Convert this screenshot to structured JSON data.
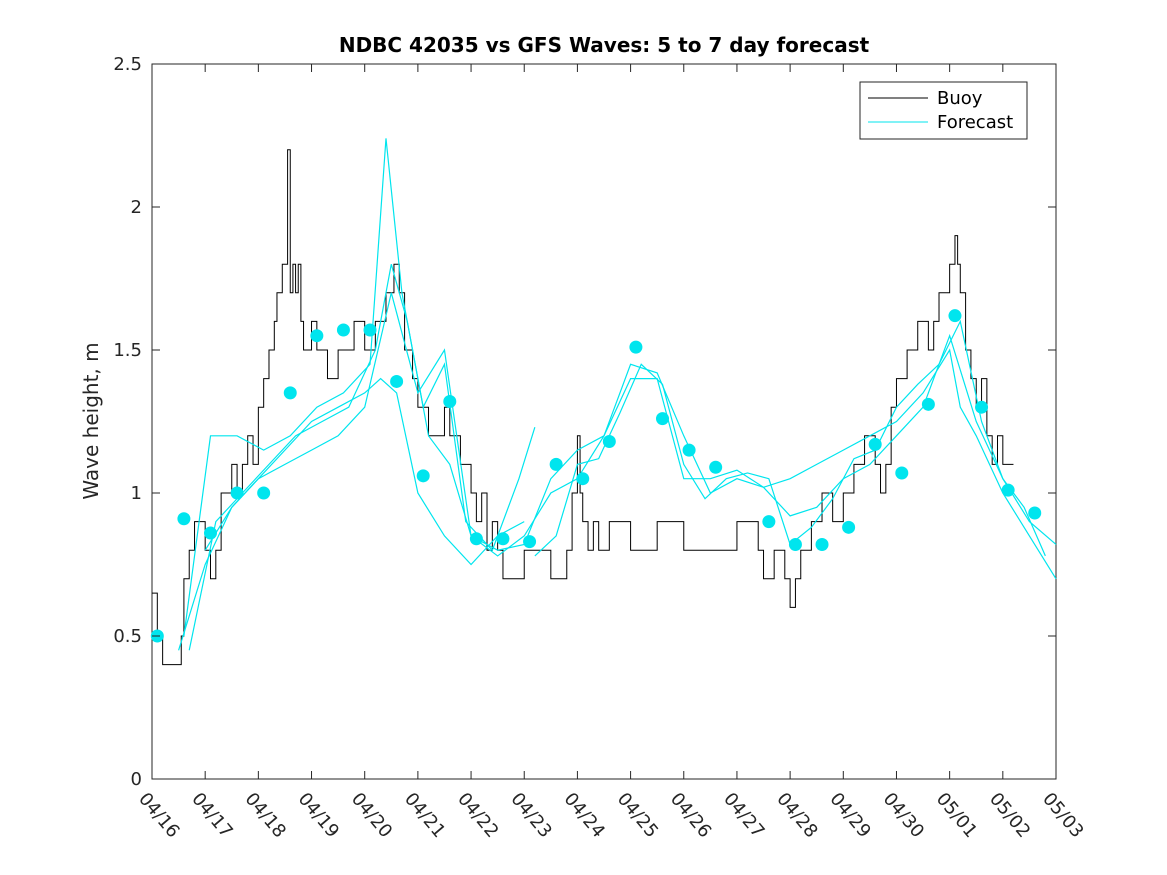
{
  "chart_data": {
    "type": "line",
    "title": "NDBC 42035 vs GFS Waves: 5 to 7 day forecast",
    "ylabel": "Wave height, m",
    "xlabel": "",
    "xlim": [
      0,
      17
    ],
    "ylim": [
      0,
      2.5
    ],
    "x_tick_labels": [
      "04/16",
      "04/17",
      "04/18",
      "04/19",
      "04/20",
      "04/21",
      "04/22",
      "04/23",
      "04/24",
      "04/25",
      "04/26",
      "04/27",
      "04/28",
      "04/29",
      "04/30",
      "05/01",
      "05/02",
      "05/03"
    ],
    "y_ticks": [
      0,
      0.5,
      1,
      1.5,
      2,
      2.5
    ],
    "y_tick_labels": [
      "0",
      "0.5",
      "1",
      "1.5",
      "2",
      "2.5"
    ],
    "legend": {
      "position": "top-right",
      "entries": [
        "Buoy",
        "Forecast"
      ]
    },
    "colors": {
      "buoy": "#000000",
      "forecast": "#00e5ee",
      "marker": "#00e5ee"
    },
    "series": [
      {
        "name": "Buoy",
        "style": "step",
        "x": [
          0,
          0.1,
          0.2,
          0.3,
          0.55,
          0.6,
          0.7,
          0.8,
          1.0,
          1.1,
          1.2,
          1.3,
          1.5,
          1.6,
          1.7,
          1.8,
          1.9,
          2.0,
          2.1,
          2.2,
          2.3,
          2.35,
          2.45,
          2.55,
          2.6,
          2.65,
          2.7,
          2.75,
          2.8,
          2.85,
          3.0,
          3.1,
          3.3,
          3.5,
          3.8,
          4.0,
          4.2,
          4.4,
          4.55,
          4.65,
          4.75,
          4.9,
          5.0,
          5.2,
          5.5,
          5.6,
          5.8,
          6.0,
          6.1,
          6.2,
          6.3,
          6.4,
          6.5,
          6.6,
          7.0,
          7.5,
          7.8,
          7.9,
          8.0,
          8.05,
          8.1,
          8.2,
          8.3,
          8.4,
          8.6,
          9.0,
          9.5,
          10.0,
          10.5,
          11.0,
          11.4,
          11.5,
          11.7,
          11.9,
          12.0,
          12.1,
          12.2,
          12.4,
          12.6,
          12.8,
          13.0,
          13.2,
          13.4,
          13.6,
          13.7,
          13.8,
          13.9,
          14.0,
          14.2,
          14.4,
          14.6,
          14.7,
          14.8,
          15.0,
          15.1,
          15.15,
          15.2,
          15.3,
          15.4,
          15.5,
          15.6,
          15.7,
          15.8,
          15.9,
          16.0,
          16.2
        ],
        "y": [
          0.65,
          0.5,
          0.4,
          0.4,
          0.5,
          0.7,
          0.8,
          0.9,
          0.8,
          0.7,
          0.8,
          1.0,
          1.1,
          1.0,
          1.1,
          1.2,
          1.1,
          1.3,
          1.4,
          1.5,
          1.6,
          1.7,
          1.8,
          2.2,
          1.7,
          1.8,
          1.7,
          1.8,
          1.6,
          1.5,
          1.6,
          1.5,
          1.4,
          1.5,
          1.6,
          1.5,
          1.6,
          1.7,
          1.8,
          1.7,
          1.5,
          1.4,
          1.3,
          1.2,
          1.3,
          1.2,
          1.1,
          1.0,
          0.9,
          1.0,
          0.8,
          0.9,
          0.8,
          0.7,
          0.8,
          0.7,
          0.8,
          1.0,
          1.2,
          1.0,
          0.9,
          0.8,
          0.9,
          0.8,
          0.9,
          0.8,
          0.9,
          0.8,
          0.8,
          0.9,
          0.8,
          0.7,
          0.8,
          0.7,
          0.6,
          0.7,
          0.8,
          0.9,
          1.0,
          0.9,
          1.0,
          1.1,
          1.2,
          1.1,
          1.0,
          1.1,
          1.3,
          1.4,
          1.5,
          1.6,
          1.5,
          1.6,
          1.7,
          1.8,
          1.9,
          1.8,
          1.7,
          1.5,
          1.4,
          1.3,
          1.4,
          1.2,
          1.1,
          1.2,
          1.1,
          1.1
        ]
      },
      {
        "name": "Forecast",
        "style": "line",
        "x": [
          0.5,
          1.0,
          1.5,
          2.0,
          2.5,
          3.0,
          3.5,
          4.0,
          4.3,
          4.6,
          5.0,
          5.5,
          6.0,
          6.5,
          7.0
        ],
        "y": [
          0.45,
          0.75,
          0.95,
          1.05,
          1.15,
          1.25,
          1.3,
          1.35,
          1.4,
          1.35,
          1.0,
          0.85,
          0.75,
          0.85,
          0.9
        ]
      },
      {
        "name": "Forecast",
        "style": "line",
        "x": [
          0.6,
          1.1,
          1.6,
          2.1,
          2.6,
          3.1,
          3.6,
          4.1,
          4.4,
          4.7,
          5.1,
          5.5,
          5.9,
          6.4,
          6.9,
          7.2
        ],
        "y": [
          0.5,
          1.2,
          1.2,
          1.15,
          1.2,
          1.3,
          1.35,
          1.45,
          2.24,
          1.7,
          1.3,
          1.45,
          0.9,
          0.8,
          1.05,
          1.23
        ]
      },
      {
        "name": "Forecast",
        "style": "line",
        "x": [
          0.7,
          1.2,
          1.7,
          2.2,
          2.7,
          3.2,
          3.7,
          4.2,
          4.5,
          4.8,
          5.2,
          5.6,
          6.0,
          6.5,
          7.0,
          7.5,
          8.0,
          8.5,
          9.0,
          9.5,
          10.0,
          10.5,
          11.0,
          11.5,
          12.0,
          12.5,
          13.0,
          13.5,
          14.0,
          14.5,
          15.0,
          15.2,
          15.5,
          16.0,
          16.5,
          17.0
        ],
        "y": [
          0.45,
          0.9,
          1.0,
          1.1,
          1.2,
          1.25,
          1.3,
          1.5,
          1.8,
          1.6,
          1.2,
          1.1,
          0.85,
          0.8,
          0.82,
          1.05,
          1.15,
          1.2,
          1.45,
          1.42,
          1.2,
          1.0,
          1.05,
          1.02,
          1.05,
          1.1,
          1.15,
          1.2,
          1.25,
          1.35,
          1.5,
          1.3,
          1.2,
          1.0,
          0.85,
          0.7
        ]
      },
      {
        "name": "Forecast",
        "style": "line",
        "x": [
          1.0,
          1.5,
          2.0,
          2.5,
          3.0,
          3.5,
          4.0,
          4.5,
          5.0,
          5.5,
          6.0,
          6.5,
          7.0,
          7.5,
          8.0,
          8.5,
          9.0,
          9.5,
          10.0,
          10.5,
          11.0,
          11.5,
          12.0,
          12.5,
          13.0,
          13.5,
          14.0,
          14.5,
          15.0,
          15.5,
          16.0,
          16.5,
          17.0
        ],
        "y": [
          0.8,
          0.95,
          1.05,
          1.1,
          1.15,
          1.2,
          1.3,
          1.7,
          1.35,
          1.5,
          0.85,
          0.78,
          0.85,
          1.0,
          1.05,
          1.2,
          1.4,
          1.4,
          1.05,
          1.05,
          1.08,
          1.02,
          0.92,
          0.95,
          1.05,
          1.1,
          1.2,
          1.3,
          1.55,
          1.25,
          1.05,
          0.9,
          0.82
        ]
      },
      {
        "name": "Forecast",
        "style": "line",
        "x": [
          7.2,
          7.6,
          8.0,
          8.4,
          8.8,
          9.2,
          9.6,
          10.0,
          10.4,
          10.8,
          11.2,
          11.6,
          12.0,
          12.4,
          12.8,
          13.2,
          13.6,
          14.0,
          14.4,
          14.8,
          15.2,
          15.6,
          16.0,
          16.4,
          16.8
        ],
        "y": [
          0.78,
          0.85,
          1.1,
          1.12,
          1.28,
          1.45,
          1.38,
          1.1,
          0.98,
          1.05,
          1.07,
          1.05,
          0.82,
          0.88,
          0.98,
          1.12,
          1.15,
          1.3,
          1.38,
          1.45,
          1.6,
          1.25,
          1.05,
          0.95,
          0.78
        ]
      }
    ],
    "markers": {
      "name": "Forecast",
      "x": [
        0.1,
        0.6,
        1.1,
        1.6,
        2.1,
        2.6,
        3.1,
        3.6,
        4.1,
        4.6,
        5.1,
        5.6,
        6.1,
        6.6,
        7.1,
        7.6,
        8.1,
        8.6,
        9.1,
        9.6,
        10.1,
        10.6,
        11.6,
        12.1,
        12.6,
        13.1,
        13.6,
        14.1,
        14.6,
        15.1,
        15.6,
        16.1,
        16.6
      ],
      "y": [
        0.5,
        0.91,
        0.86,
        1.0,
        1.0,
        1.35,
        1.55,
        1.57,
        1.57,
        1.39,
        1.06,
        1.32,
        0.84,
        0.84,
        0.83,
        1.1,
        1.05,
        1.18,
        1.51,
        1.26,
        1.15,
        1.09,
        0.9,
        0.82,
        0.82,
        0.88,
        1.17,
        1.07,
        1.31,
        1.62,
        1.3,
        1.01,
        0.93
      ]
    }
  }
}
